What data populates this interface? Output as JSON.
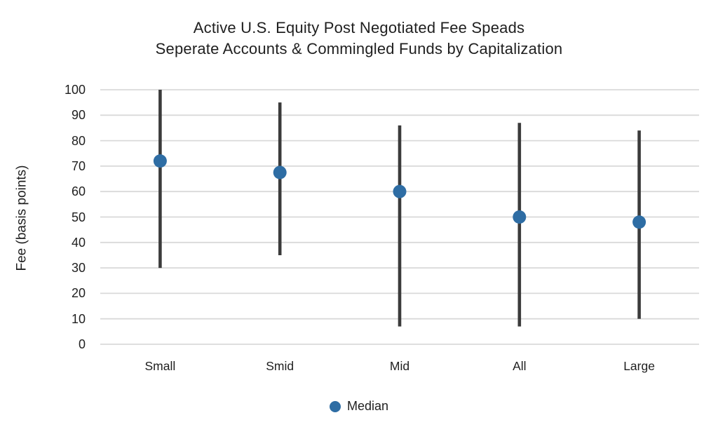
{
  "page": {
    "background": "#FFFFFF"
  },
  "chart_data": {
    "type": "scatter",
    "subtype": "min-max range lines with median point markers",
    "title": "Active U.S. Equity Post Negotiated Fee Speads",
    "subtitle": "Seperate Accounts & Commingled Funds by Capitalization",
    "ylabel": "Fee (basis points)",
    "xlabel": "",
    "ylim": [
      0,
      100
    ],
    "yticks": [
      0,
      10,
      20,
      30,
      40,
      50,
      60,
      70,
      80,
      90,
      100
    ],
    "grid": "horizontal gridlines only, no axis lines",
    "legend_position": "bottom-center",
    "categories": [
      "Small",
      "Smid",
      "Mid",
      "All",
      "Large"
    ],
    "series": [
      {
        "name": "Median",
        "role": "median",
        "values": [
          72,
          67.5,
          60,
          50,
          48
        ]
      },
      {
        "name": "Range low",
        "role": "range_low",
        "values": [
          30,
          35,
          7,
          7,
          10
        ]
      },
      {
        "name": "Range high",
        "role": "range_high",
        "values": [
          100,
          95,
          86,
          87,
          84
        ]
      }
    ],
    "legend": {
      "label": "Median"
    },
    "colors": {
      "median_dot": "#2E6DA4",
      "range_line": "#3B3B3B",
      "gridline": "#D9D9D9",
      "text": "#1F1F1F",
      "background": "#FFFFFF"
    }
  }
}
